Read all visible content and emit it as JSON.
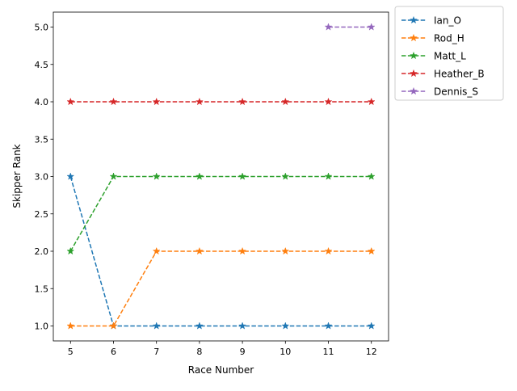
{
  "chart_data": {
    "type": "line",
    "title": "",
    "xlabel": "Race Number",
    "ylabel": "Skipper Rank",
    "x": [
      5,
      6,
      7,
      8,
      9,
      10,
      11,
      12
    ],
    "xlim": [
      4.6,
      12.4
    ],
    "ylim": [
      0.8,
      5.2
    ],
    "x_ticks": [
      5,
      6,
      7,
      8,
      9,
      10,
      11,
      12
    ],
    "y_ticks": [
      1.0,
      1.5,
      2.0,
      2.5,
      3.0,
      3.5,
      4.0,
      4.5,
      5.0
    ],
    "y_tick_labels": [
      "1.0",
      "1.5",
      "2.0",
      "2.5",
      "3.0",
      "3.5",
      "4.0",
      "4.5",
      "5.0"
    ],
    "grid": false,
    "legend_placement": "outside-right-top",
    "line_style": "dashed",
    "marker": "star",
    "series": [
      {
        "name": "Ian_O",
        "color": "#1f77b4",
        "x": [
          5,
          6,
          7,
          8,
          9,
          10,
          11,
          12
        ],
        "values": [
          3,
          1,
          1,
          1,
          1,
          1,
          1,
          1
        ]
      },
      {
        "name": "Rod_H",
        "color": "#ff7f0e",
        "x": [
          5,
          6,
          7,
          8,
          9,
          10,
          11,
          12
        ],
        "values": [
          1,
          1,
          2,
          2,
          2,
          2,
          2,
          2
        ]
      },
      {
        "name": "Matt_L",
        "color": "#2ca02c",
        "x": [
          5,
          6,
          7,
          8,
          9,
          10,
          11,
          12
        ],
        "values": [
          2,
          3,
          3,
          3,
          3,
          3,
          3,
          3
        ]
      },
      {
        "name": "Heather_B",
        "color": "#d62728",
        "x": [
          5,
          6,
          7,
          8,
          9,
          10,
          11,
          12
        ],
        "values": [
          4,
          4,
          4,
          4,
          4,
          4,
          4,
          4
        ]
      },
      {
        "name": "Dennis_S",
        "color": "#9467bd",
        "x": [
          11,
          12
        ],
        "values": [
          5,
          5
        ]
      }
    ]
  }
}
